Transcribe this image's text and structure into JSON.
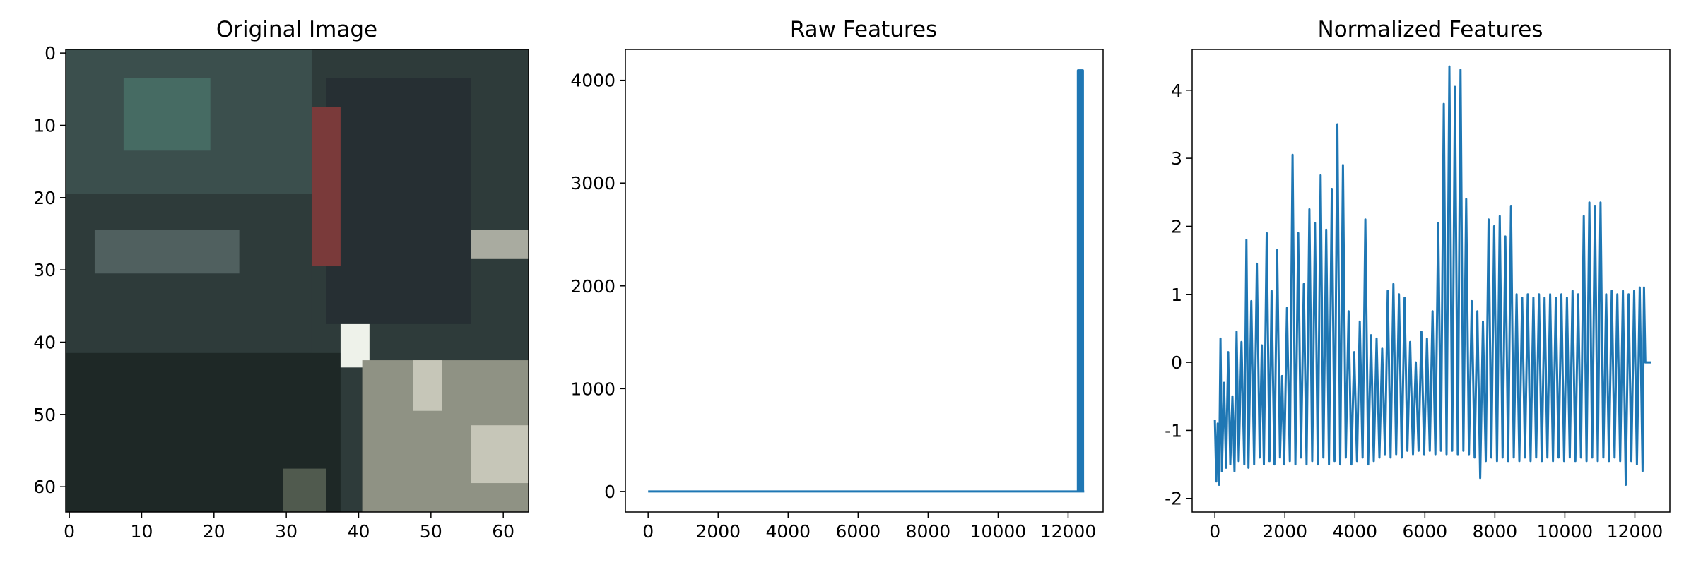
{
  "figure": {
    "panels": [
      {
        "title": "Original Image"
      },
      {
        "title": "Raw Features"
      },
      {
        "title": "Normalized Features"
      }
    ]
  },
  "chart_data": [
    {
      "type": "image",
      "title": "Original Image",
      "description_pixels": "64x64 RGB image",
      "xlim": [
        -0.5,
        63.5
      ],
      "ylim": [
        63.5,
        -0.5
      ],
      "xticks": [
        0,
        10,
        20,
        30,
        40,
        50,
        60
      ],
      "yticks": [
        0,
        10,
        20,
        30,
        40,
        50,
        60
      ],
      "palette": {
        "body": "#2e3b3a",
        "shadow": "#1e2826",
        "glass": "#3b4f4d",
        "plate": "#50605f",
        "road": "#8f9284",
        "stripe": "#c6c6b8",
        "dark_car": "#262f33",
        "highlight": "#eef2ea",
        "red_light": "#7a3a3a"
      }
    },
    {
      "type": "line",
      "title": "Raw Features",
      "xlabel": "",
      "ylabel": "",
      "xlim": [
        -650,
        13000
      ],
      "ylim": [
        -200,
        4300
      ],
      "xticks": [
        0,
        2000,
        4000,
        6000,
        8000,
        10000,
        12000
      ],
      "yticks": [
        0,
        1000,
        2000,
        3000,
        4000
      ],
      "series": [
        {
          "color": "#1f77b4",
          "points": [
            [
              0,
              0
            ],
            [
              12279,
              0
            ],
            [
              12280,
              4096
            ],
            [
              12282,
              0
            ],
            [
              12285,
              4096
            ],
            [
              12288,
              0
            ],
            [
              12291,
              4096
            ],
            [
              12294,
              0
            ],
            [
              12297,
              4096
            ],
            [
              12300,
              0
            ],
            [
              12303,
              4096
            ],
            [
              12306,
              0
            ],
            [
              12309,
              4096
            ],
            [
              12312,
              0
            ],
            [
              12315,
              4096
            ],
            [
              12318,
              0
            ],
            [
              12321,
              4096
            ],
            [
              12324,
              0
            ],
            [
              12327,
              4096
            ],
            [
              12330,
              0
            ],
            [
              12333,
              4096
            ],
            [
              12336,
              0
            ],
            [
              12339,
              4096
            ],
            [
              12342,
              0
            ],
            [
              12345,
              4096
            ],
            [
              12348,
              0
            ],
            [
              12351,
              4096
            ],
            [
              12354,
              0
            ],
            [
              12357,
              4096
            ],
            [
              12360,
              0
            ],
            [
              12363,
              4096
            ],
            [
              12366,
              0
            ],
            [
              12369,
              4096
            ],
            [
              12372,
              0
            ],
            [
              12375,
              4096
            ],
            [
              12378,
              0
            ],
            [
              12381,
              4096
            ],
            [
              12384,
              0
            ],
            [
              12387,
              4096
            ],
            [
              12390,
              0
            ],
            [
              12393,
              4096
            ],
            [
              12396,
              0
            ],
            [
              12399,
              4096
            ],
            [
              12402,
              0
            ],
            [
              12405,
              4096
            ],
            [
              12408,
              0
            ],
            [
              12411,
              4096
            ],
            [
              12414,
              0
            ],
            [
              12417,
              4096
            ],
            [
              12420,
              0
            ],
            [
              12423,
              4096
            ],
            [
              12426,
              0
            ],
            [
              12460,
              0
            ]
          ]
        }
      ]
    },
    {
      "type": "line",
      "title": "Normalized Features",
      "xlabel": "",
      "ylabel": "",
      "xlim": [
        -650,
        13000
      ],
      "ylim": [
        -2.2,
        4.6
      ],
      "xticks": [
        0,
        2000,
        4000,
        6000,
        8000,
        10000,
        12000
      ],
      "yticks": [
        -2,
        -1,
        0,
        1,
        2,
        3,
        4
      ],
      "series": [
        {
          "color": "#1f77b4",
          "points": [
            [
              0,
              -0.85
            ],
            [
              40,
              -1.75
            ],
            [
              80,
              -0.9
            ],
            [
              120,
              -1.8
            ],
            [
              160,
              0.35
            ],
            [
              200,
              -1.6
            ],
            [
              260,
              -0.3
            ],
            [
              320,
              -1.55
            ],
            [
              380,
              0.15
            ],
            [
              440,
              -1.5
            ],
            [
              500,
              -0.5
            ],
            [
              560,
              -1.6
            ],
            [
              620,
              0.45
            ],
            [
              680,
              -1.45
            ],
            [
              760,
              0.3
            ],
            [
              840,
              -1.5
            ],
            [
              900,
              1.8
            ],
            [
              960,
              -1.55
            ],
            [
              1040,
              0.9
            ],
            [
              1120,
              -1.5
            ],
            [
              1200,
              1.45
            ],
            [
              1280,
              -1.4
            ],
            [
              1340,
              0.25
            ],
            [
              1400,
              -1.5
            ],
            [
              1480,
              1.9
            ],
            [
              1560,
              -1.45
            ],
            [
              1620,
              1.05
            ],
            [
              1700,
              -1.5
            ],
            [
              1780,
              1.65
            ],
            [
              1860,
              -1.4
            ],
            [
              1920,
              -0.2
            ],
            [
              1980,
              -1.5
            ],
            [
              2060,
              0.8
            ],
            [
              2140,
              -1.45
            ],
            [
              2220,
              3.05
            ],
            [
              2300,
              -1.5
            ],
            [
              2380,
              1.9
            ],
            [
              2460,
              -1.4
            ],
            [
              2540,
              1.15
            ],
            [
              2620,
              -1.5
            ],
            [
              2700,
              2.25
            ],
            [
              2780,
              -1.45
            ],
            [
              2860,
              2.05
            ],
            [
              2940,
              -1.5
            ],
            [
              3020,
              2.75
            ],
            [
              3100,
              -1.4
            ],
            [
              3180,
              1.95
            ],
            [
              3260,
              -1.5
            ],
            [
              3340,
              2.55
            ],
            [
              3420,
              -1.45
            ],
            [
              3500,
              3.5
            ],
            [
              3580,
              -1.5
            ],
            [
              3660,
              2.9
            ],
            [
              3740,
              -1.4
            ],
            [
              3820,
              0.75
            ],
            [
              3900,
              -1.5
            ],
            [
              3980,
              0.15
            ],
            [
              4060,
              -1.45
            ],
            [
              4140,
              0.6
            ],
            [
              4220,
              -1.4
            ],
            [
              4300,
              2.1
            ],
            [
              4380,
              -1.5
            ],
            [
              4460,
              0.4
            ],
            [
              4540,
              -1.45
            ],
            [
              4620,
              0.35
            ],
            [
              4700,
              -1.4
            ],
            [
              4780,
              0.2
            ],
            [
              4860,
              -1.35
            ],
            [
              4940,
              1.05
            ],
            [
              5020,
              -1.4
            ],
            [
              5100,
              1.15
            ],
            [
              5180,
              -1.35
            ],
            [
              5260,
              1.0
            ],
            [
              5340,
              -1.4
            ],
            [
              5420,
              0.95
            ],
            [
              5500,
              -1.3
            ],
            [
              5580,
              0.3
            ],
            [
              5660,
              -1.35
            ],
            [
              5740,
              0.0
            ],
            [
              5820,
              -1.3
            ],
            [
              5900,
              0.45
            ],
            [
              5980,
              -1.35
            ],
            [
              6060,
              0.35
            ],
            [
              6140,
              -1.3
            ],
            [
              6220,
              0.75
            ],
            [
              6300,
              -1.35
            ],
            [
              6380,
              2.05
            ],
            [
              6460,
              -1.3
            ],
            [
              6540,
              3.8
            ],
            [
              6620,
              -1.35
            ],
            [
              6700,
              4.35
            ],
            [
              6780,
              -1.3
            ],
            [
              6860,
              4.05
            ],
            [
              6940,
              -1.35
            ],
            [
              7020,
              4.3
            ],
            [
              7100,
              -1.3
            ],
            [
              7180,
              2.4
            ],
            [
              7260,
              -1.35
            ],
            [
              7340,
              0.9
            ],
            [
              7420,
              -1.4
            ],
            [
              7500,
              0.75
            ],
            [
              7580,
              -1.7
            ],
            [
              7660,
              0.6
            ],
            [
              7740,
              -1.45
            ],
            [
              7820,
              2.1
            ],
            [
              7900,
              -1.4
            ],
            [
              7980,
              2.0
            ],
            [
              8060,
              -1.45
            ],
            [
              8140,
              2.15
            ],
            [
              8220,
              -1.4
            ],
            [
              8300,
              1.85
            ],
            [
              8380,
              -1.45
            ],
            [
              8460,
              2.3
            ],
            [
              8540,
              -1.4
            ],
            [
              8620,
              1.0
            ],
            [
              8700,
              -1.45
            ],
            [
              8780,
              0.95
            ],
            [
              8860,
              -1.4
            ],
            [
              8940,
              1.0
            ],
            [
              9020,
              -1.45
            ],
            [
              9100,
              0.95
            ],
            [
              9180,
              -1.4
            ],
            [
              9260,
              1.0
            ],
            [
              9340,
              -1.45
            ],
            [
              9420,
              0.95
            ],
            [
              9500,
              -1.4
            ],
            [
              9580,
              1.0
            ],
            [
              9660,
              -1.45
            ],
            [
              9740,
              0.95
            ],
            [
              9820,
              -1.4
            ],
            [
              9900,
              1.0
            ],
            [
              9980,
              -1.45
            ],
            [
              10060,
              0.95
            ],
            [
              10140,
              -1.4
            ],
            [
              10220,
              1.05
            ],
            [
              10300,
              -1.45
            ],
            [
              10380,
              1.0
            ],
            [
              10460,
              -1.4
            ],
            [
              10540,
              2.15
            ],
            [
              10620,
              -1.45
            ],
            [
              10700,
              2.35
            ],
            [
              10780,
              -1.4
            ],
            [
              10860,
              2.3
            ],
            [
              10940,
              -1.45
            ],
            [
              11020,
              2.35
            ],
            [
              11100,
              -1.4
            ],
            [
              11180,
              1.0
            ],
            [
              11260,
              -1.45
            ],
            [
              11340,
              1.05
            ],
            [
              11420,
              -1.4
            ],
            [
              11500,
              1.0
            ],
            [
              11580,
              -1.45
            ],
            [
              11660,
              1.05
            ],
            [
              11740,
              -1.8
            ],
            [
              11820,
              1.0
            ],
            [
              11900,
              -1.45
            ],
            [
              11980,
              1.05
            ],
            [
              12060,
              -1.5
            ],
            [
              12140,
              1.1
            ],
            [
              12220,
              -1.6
            ],
            [
              12260,
              1.1
            ],
            [
              12300,
              0.0
            ],
            [
              12460,
              0.0
            ]
          ]
        }
      ]
    }
  ]
}
